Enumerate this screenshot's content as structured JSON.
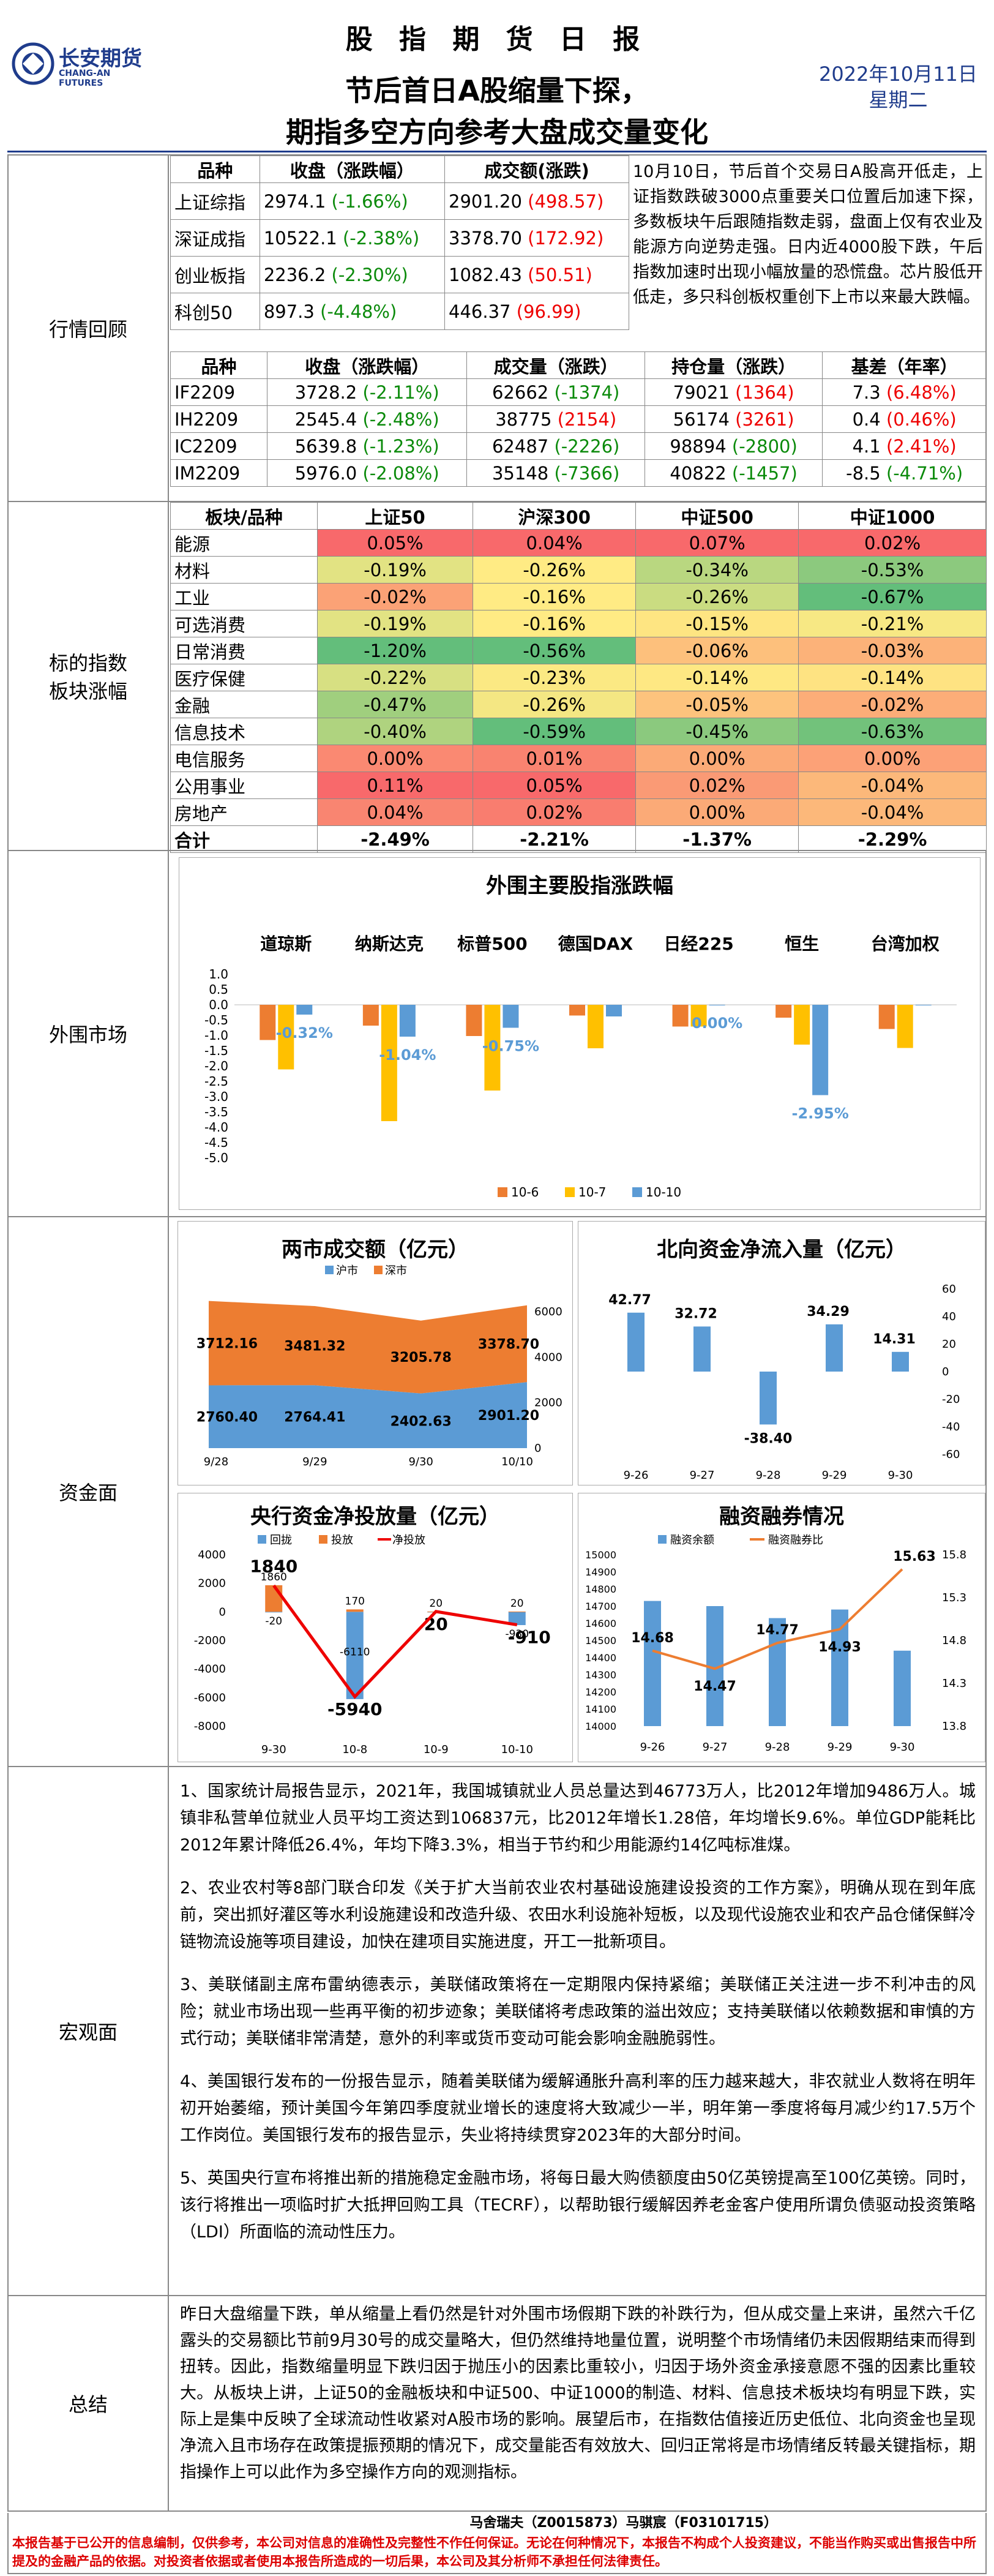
{
  "header": {
    "logo_cn": "长安期货",
    "logo_en": "CHANG-AN FUTURES",
    "title": "股 指 期 货 日 报",
    "subtitle1": "节后首日A股缩量下探，",
    "subtitle2": "期指多空方向参考大盘成交量变化",
    "date": "2022年10月11日",
    "weekday": "星期二"
  },
  "review": {
    "label": "行情回顾",
    "idx_headers": [
      "品种",
      "收盘（涨跌幅）",
      "成交额(涨跌)"
    ],
    "idx_rows": [
      {
        "name": "上证综指",
        "close": "2974.1",
        "chg": "(-1.66%)",
        "amt": "2901.20",
        "amt_chg": "(498.57)"
      },
      {
        "name": "深证成指",
        "close": "10522.1",
        "chg": "(-2.38%)",
        "amt": "3378.70",
        "amt_chg": "(172.92)"
      },
      {
        "name": "创业板指",
        "close": "2236.2",
        "chg": "(-2.30%)",
        "amt": "1082.43",
        "amt_chg": "(50.51)"
      },
      {
        "name": "科创50",
        "close": "897.3",
        "chg": "(-4.48%)",
        "amt": "446.37",
        "amt_chg": "(96.99)"
      }
    ],
    "comment": "10月10日，节后首个交易日A股高开低走，上证指数跌破3000点重要关口位置后加速下探，多数板块午后跟随指数走弱，盘面上仅有农业及能源方向逆势走强。日内近4000股下跌，午后指数加速时出现小幅放量的恐慌盘。芯片股低开低走，多只科创板权重创下上市以来最大跌幅。",
    "fut_headers": [
      "品种",
      "收盘（涨跌幅）",
      "成交量（涨跌）",
      "持仓量（涨跌）",
      "基差（年率）"
    ],
    "fut_rows": [
      {
        "name": "IF2209",
        "close": "3728.2",
        "chg": "(-2.11%)",
        "vol": "62662",
        "vol_chg": "(-1374)",
        "oi": "79021",
        "oi_chg": "(1364)",
        "basis": "7.3",
        "basis_rate": "(6.48%)"
      },
      {
        "name": "IH2209",
        "close": "2545.4",
        "chg": "(-2.48%)",
        "vol": "38775",
        "vol_chg": "(2154)",
        "oi": "56174",
        "oi_chg": "(3261)",
        "basis": "0.4",
        "basis_rate": "(0.46%)"
      },
      {
        "name": "IC2209",
        "close": "5639.8",
        "chg": "(-1.23%)",
        "vol": "62487",
        "vol_chg": "(-2226)",
        "oi": "98894",
        "oi_chg": "(-2800)",
        "basis": "4.1",
        "basis_rate": "(2.41%)"
      },
      {
        "name": "IM2209",
        "close": "5976.0",
        "chg": "(-2.08%)",
        "vol": "35148",
        "vol_chg": "(-7366)",
        "oi": "40822",
        "oi_chg": "(-1457)",
        "basis": "-8.5",
        "basis_rate": "(-4.71%)"
      }
    ]
  },
  "sectors": {
    "label": "标的指数\n板块涨幅",
    "headers": [
      "板块/品种",
      "上证50",
      "沪深300",
      "中证500",
      "中证1000"
    ],
    "rows": [
      {
        "name": "能源",
        "vals": [
          "0.05%",
          "0.04%",
          "0.07%",
          "0.02%"
        ],
        "colors": [
          "#f8696b",
          "#f8696b",
          "#f8696b",
          "#f8696b"
        ]
      },
      {
        "name": "材料",
        "vals": [
          "-0.19%",
          "-0.26%",
          "-0.34%",
          "-0.53%"
        ],
        "colors": [
          "#e2e383",
          "#ffeb84",
          "#b9d780",
          "#8cc97e"
        ]
      },
      {
        "name": "工业",
        "vals": [
          "-0.02%",
          "-0.16%",
          "-0.26%",
          "-0.67%"
        ],
        "colors": [
          "#fba276",
          "#ffeb84",
          "#cadc81",
          "#63be7b"
        ]
      },
      {
        "name": "可选消费",
        "vals": [
          "-0.19%",
          "-0.16%",
          "-0.15%",
          "-0.21%"
        ],
        "colors": [
          "#e2e383",
          "#ffeb84",
          "#fee582",
          "#f7e884"
        ]
      },
      {
        "name": "日常消费",
        "vals": [
          "-1.20%",
          "-0.56%",
          "-0.06%",
          "-0.03%"
        ],
        "colors": [
          "#63be7b",
          "#63be7b",
          "#fdc07c",
          "#fcb279"
        ]
      },
      {
        "name": "医疗保健",
        "vals": [
          "-0.22%",
          "-0.23%",
          "-0.14%",
          "-0.14%"
        ],
        "colors": [
          "#d7e082",
          "#fbe983",
          "#fee883",
          "#fee382"
        ]
      },
      {
        "name": "金融",
        "vals": [
          "-0.47%",
          "-0.26%",
          "-0.05%",
          "-0.02%"
        ],
        "colors": [
          "#a0cf7e",
          "#f4e783",
          "#fdc37d",
          "#fcad78"
        ]
      },
      {
        "name": "信息技术",
        "vals": [
          "-0.40%",
          "-0.59%",
          "-0.45%",
          "-0.63%"
        ],
        "colors": [
          "#afd37f",
          "#63be7b",
          "#8bc97e",
          "#72c27b"
        ]
      },
      {
        "name": "电信服务",
        "vals": [
          "0.00%",
          "0.01%",
          "0.00%",
          "0.00%"
        ],
        "colors": [
          "#fa8972",
          "#f98370",
          "#fbaa77",
          "#fca177"
        ]
      },
      {
        "name": "公用事业",
        "vals": [
          "0.11%",
          "0.05%",
          "0.02%",
          "-0.04%"
        ],
        "colors": [
          "#f8696b",
          "#f8696b",
          "#fa9a75",
          "#fcb87a"
        ]
      },
      {
        "name": "房地产",
        "vals": [
          "0.04%",
          "0.02%",
          "0.00%",
          "-0.04%"
        ],
        "colors": [
          "#f98571",
          "#f97d6f",
          "#fbaa77",
          "#fcb87a"
        ]
      },
      {
        "name": "合计",
        "vals": [
          "-2.49%",
          "-2.21%",
          "-1.37%",
          "-2.29%"
        ],
        "colors": [
          "#ffffff",
          "#ffffff",
          "#ffffff",
          "#ffffff"
        ]
      }
    ]
  },
  "foreign": {
    "label": "外围市场",
    "chart_data": {
      "type": "bar",
      "title": "外围主要股指涨跌幅",
      "categories": [
        "道琼斯",
        "纳斯达克",
        "标普500",
        "德国DAX",
        "日经225",
        "恒生",
        "台湾加权"
      ],
      "series": [
        {
          "name": "10-6",
          "color": "#ed7d31",
          "values": [
            -1.15,
            -0.68,
            -1.02,
            -0.35,
            -0.71,
            -0.42,
            -0.79
          ]
        },
        {
          "name": "10-7",
          "color": "#ffc000",
          "values": [
            -2.11,
            -3.8,
            -2.8,
            -1.42,
            -0.71,
            -1.3,
            -1.41
          ]
        },
        {
          "name": "10-10",
          "color": "#5b9bd5",
          "values": [
            -0.32,
            -1.04,
            -0.75,
            -0.38,
            0.0,
            -2.95,
            0.0
          ]
        }
      ],
      "labels": [
        "-0.32%",
        "-1.04%",
        "-0.75%",
        "",
        "0.00%",
        "-2.95%",
        ""
      ],
      "yticks": [
        "1.0",
        "0.5",
        "0.0",
        "-0.5",
        "-1.0",
        "-1.5",
        "-2.0",
        "-2.5",
        "-3.0",
        "-3.5",
        "-4.0",
        "-4.5",
        "-5.0"
      ],
      "ylim": [
        -5,
        1
      ]
    }
  },
  "funds": {
    "label": "资金面",
    "turnover": {
      "title": "两市成交额（亿元）",
      "legend": [
        "沪市",
        "深市"
      ],
      "x": [
        "9/28",
        "9/29",
        "9/30",
        "10/10"
      ],
      "sh": [
        2760.4,
        2764.41,
        2402.63,
        2901.2
      ],
      "sz": [
        3712.16,
        3481.32,
        3205.78,
        3378.7
      ],
      "yticks": [
        "0",
        "2000",
        "4000",
        "6000"
      ],
      "sh_labels": [
        "2760.40",
        "2764.41",
        "2402.63",
        "2901.20"
      ],
      "sz_labels": [
        "3712.16",
        "3481.32",
        "3205.78",
        "3378.70"
      ]
    },
    "north": {
      "title": "北向资金净流入量（亿元）",
      "x": [
        "9-26",
        "9-27",
        "9-28",
        "9-29",
        "9-30"
      ],
      "values": [
        42.77,
        32.72,
        -38.4,
        34.29,
        14.31
      ],
      "labels": [
        "42.77",
        "32.72",
        "-38.40",
        "34.29",
        "14.31"
      ],
      "yticks": [
        "60",
        "40",
        "20",
        "0",
        "-20",
        "-40",
        "-60"
      ]
    },
    "pboc": {
      "title": "央行资金净投放量（亿元）",
      "legend": [
        "回拢",
        "投放",
        "净投放"
      ],
      "x": [
        "9-30",
        "10-8",
        "10-9",
        "10-10"
      ],
      "withdraw": [
        -20,
        -6110,
        0,
        -930
      ],
      "inject": [
        1860,
        170,
        20,
        20
      ],
      "net": [
        1840,
        -5940,
        20,
        -910
      ],
      "w_labels": [
        "-20",
        "-6110",
        "",
        "-930"
      ],
      "i_labels": [
        "1860",
        "170",
        "20",
        "20"
      ],
      "n_labels": [
        "1840",
        "-5940",
        "20",
        "-910"
      ],
      "yticks": [
        "4000",
        "2000",
        "0",
        "-2000",
        "-4000",
        "-6000",
        "-8000"
      ]
    },
    "margin": {
      "title": "融资融券情况",
      "legend": [
        "融资余额",
        "融资融券比"
      ],
      "x": [
        "9-26",
        "9-27",
        "9-28",
        "9-29",
        "9-30"
      ],
      "balance": [
        14730,
        14700,
        14630,
        14680,
        14440
      ],
      "ratio": [
        14.68,
        14.47,
        14.77,
        14.93,
        15.63
      ],
      "labels": [
        "14.68",
        "14.47",
        "14.77",
        "14.93",
        "15.63"
      ],
      "yticks_l": [
        "15000",
        "14900",
        "14800",
        "14700",
        "14600",
        "14500",
        "14400",
        "14300",
        "14200",
        "14100",
        "14000"
      ],
      "yticks_r": [
        "15.8",
        "15.3",
        "14.8",
        "14.3",
        "13.8"
      ]
    }
  },
  "macro": {
    "label": "宏观面",
    "paras": [
      "1、国家统计局报告显示，2021年，我国城镇就业人员总量达到46773万人，比2012年增加9486万人。城镇非私营单位就业人员平均工资达到106837元，比2012年增长1.28倍，年均增长9.6%。单位GDP能耗比2012年累计降低26.4%，年均下降3.3%，相当于节约和少用能源约14亿吨标准煤。",
      "2、农业农村等8部门联合印发《关于扩大当前农业农村基础设施建设投资的工作方案》，明确从现在到年底前，突出抓好灌区等水利设施建设和改造升级、农田水利设施补短板，以及现代设施农业和农产品仓储保鲜冷链物流设施等项目建设，加快在建项目实施进度，开工一批新项目。",
      "3、美联储副主席布雷纳德表示，美联储政策将在一定期限内保持紧缩；美联储正关注进一步不利冲击的风险；就业市场出现一些再平衡的初步迹象；美联储将考虑政策的溢出效应；支持美联储以依赖数据和审慎的方式行动；美联储非常清楚，意外的利率或货币变动可能会影响金融脆弱性。",
      "4、美国银行发布的一份报告显示，随着美联储为缓解通胀升高利率的压力越来越大，非农就业人数将在明年初开始萎缩，预计美国今年第四季度就业增长的速度将大致减少一半，明年第一季度将每月减少约17.5万个工作岗位。美国银行发布的报告显示，失业将持续贯穿2023年的大部分时间。",
      "5、英国央行宣布将推出新的措施稳定金融市场，将每日最大购债额度由50亿英镑提高至100亿英镑。同时，该行将推出一项临时扩大抵押回购工具（TECRF），以帮助银行缓解因养老金客户使用所谓负债驱动投资策略（LDI）所面临的流动性压力。"
    ]
  },
  "summary": {
    "label": "总结",
    "text": "昨日大盘缩量下跌，单从缩量上看仍然是针对外围市场假期下跌的补跌行为，但从成交量上来讲，虽然六千亿露头的交易额比节前9月30号的成交量略大，但仍然维持地量位置，说明整个市场情绪仍未因假期结束而得到扭转。因此，指数缩量明显下跌归因于抛压小的因素比重较小，归因于场外资金承接意愿不强的因素比重较大。从板块上讲，上证50的金融板块和中证500、中证1000的制造、材料、信息技术板块均有明显下跌，实际上是集中反映了全球流动性收紧对A股市场的影响。展望后市，在指数估值接近历史低位、北向资金也呈现净流入且市场存在政策提振预期的情况下，成交量能否有效放大、回归正常将是市场情绪反转最关键指标，期指操作上可以此作为多空操作方向的观测指标。"
  },
  "footer": {
    "authors": "马舍瑞夫（Z0015873）马骐宸（F03101715）",
    "disclaimer": "本报告基于已公开的信息编制，仅供参考，本公司对信息的准确性及完整性不作任何保证。无论在何种情况下，本报告不构成个人投资建议，不能当作购买或出售报告中所提及的金融产品的依据。对投资者依据或者使用本报告所造成的一切后果，本公司及其分析师不承担任何法律责任。"
  }
}
